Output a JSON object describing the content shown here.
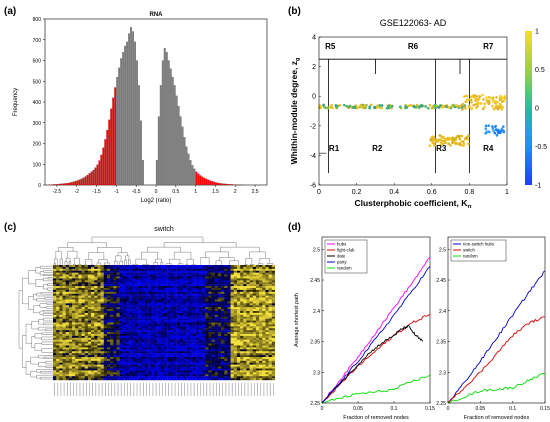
{
  "panels": {
    "a": {
      "letter": "(a)"
    },
    "b": {
      "letter": "(b)"
    },
    "c": {
      "letter": "(c)"
    },
    "d": {
      "letter": "(d)"
    }
  },
  "chart_data": [
    {
      "id": "a",
      "type": "bar",
      "title": "RNA",
      "xlabel": "Log2 (ratio)",
      "ylabel": "Frequency",
      "xlim": [
        -2.8,
        2.8
      ],
      "ylim": [
        0,
        800
      ],
      "xticks": [
        "-2.5",
        "-2",
        "-1.5",
        "-1",
        "-0.5",
        "0",
        "0.5",
        "1",
        "1.5",
        "2",
        "2.5"
      ],
      "xtick_values": [
        -2.5,
        -2,
        -1.5,
        -1,
        -0.5,
        0,
        0.5,
        1,
        1.5,
        2,
        2.5
      ],
      "yticks": [
        0,
        100,
        200,
        300,
        400,
        500,
        600,
        700,
        800
      ],
      "bin_width": 0.05,
      "bin_start": -2.7,
      "values": [
        2,
        2,
        3,
        3,
        4,
        5,
        6,
        7,
        8,
        9,
        11,
        13,
        16,
        19,
        22,
        26,
        30,
        35,
        41,
        48,
        56,
        64,
        72,
        84,
        98,
        118,
        145,
        180,
        220,
        265,
        315,
        368,
        420,
        470,
        520,
        565,
        610,
        640,
        670,
        690,
        730,
        760,
        740,
        690,
        600,
        480,
        310,
        120,
        0,
        0,
        0,
        0,
        0,
        0,
        120,
        330,
        480,
        600,
        660,
        640,
        600,
        560,
        520,
        480,
        430,
        380,
        330,
        280,
        230,
        185,
        150,
        120,
        95,
        78,
        64,
        54,
        46,
        40,
        34,
        29,
        25,
        21,
        18,
        15,
        12,
        10,
        8,
        7,
        6,
        5,
        4,
        3,
        3,
        2,
        2,
        1,
        1,
        1,
        0,
        0,
        0,
        0,
        0,
        0,
        0,
        0,
        0,
        0
      ],
      "highlight_color": "#ff0000",
      "bar_color": "#808080",
      "highlight_ranges": [
        [
          -2.7,
          -1.0
        ],
        [
          1.0,
          2.7
        ]
      ]
    },
    {
      "id": "b",
      "type": "scatter",
      "title": "GSE122063- AD",
      "xlabel": "Clusterphobic coefficient, K",
      "xlabel_sub": "π",
      "ylabel": "Whithin-module degree, z",
      "ylabel_sub": "g",
      "xlim": [
        0,
        1
      ],
      "ylim": [
        -6,
        4
      ],
      "xticks": [
        "0",
        "0.2",
        "0.4",
        "0.6",
        "0.8",
        "1"
      ],
      "xtick_values": [
        0,
        0.2,
        0.4,
        0.6,
        0.8,
        1
      ],
      "yticks": [
        "-6",
        "-4",
        "-2",
        "0",
        "2",
        "4"
      ],
      "ytick_values": [
        -6,
        -4,
        -2,
        0,
        2,
        4
      ],
      "region_labels": [
        {
          "text": "R5",
          "x": 0.06,
          "y": 3.2
        },
        {
          "text": "R6",
          "x": 0.5,
          "y": 3.2
        },
        {
          "text": "R7",
          "x": 0.9,
          "y": 3.2
        },
        {
          "text": "R1",
          "x": 0.08,
          "y": -3.7
        },
        {
          "text": "R2",
          "x": 0.31,
          "y": -3.7
        },
        {
          "text": "R3",
          "x": 0.65,
          "y": -3.7
        },
        {
          "text": "R4",
          "x": 0.9,
          "y": -3.7
        }
      ],
      "region_arrow_label": "R1",
      "hline": 2.5,
      "vlines_upper": [
        0.3,
        0.75
      ],
      "vlines_lower": [
        0.05,
        0.62,
        0.8
      ],
      "colorbar": {
        "min": -1,
        "max": 1,
        "ticks": [
          "-1",
          "-0.5",
          "0",
          "0.5",
          "1"
        ],
        "tick_values": [
          -1,
          -0.5,
          0,
          0.5,
          1
        ]
      },
      "clusters": [
        {
          "x_range": [
            0.0,
            0.78
          ],
          "y_center": -0.7,
          "y_spread": 0.12,
          "count": 160,
          "colors": [
            "#f0c020",
            "#e8b820",
            "#28a0a0",
            "#40b070",
            "#90c040"
          ]
        },
        {
          "x_range": [
            0.76,
            0.99
          ],
          "y_center": -0.4,
          "y_spread": 0.5,
          "count": 90,
          "colors": [
            "#f0c020",
            "#e0b030",
            "#f5d020"
          ]
        },
        {
          "x_range": [
            0.59,
            0.8
          ],
          "y_center": -3.0,
          "y_spread": 0.35,
          "count": 70,
          "colors": [
            "#f0c020",
            "#e8b820",
            "#d0b020"
          ]
        },
        {
          "x_range": [
            0.88,
            0.99
          ],
          "y_center": -2.3,
          "y_spread": 0.35,
          "count": 30,
          "colors": [
            "#1e78ff",
            "#2090f0",
            "#3aa0ff"
          ]
        }
      ]
    },
    {
      "id": "c",
      "type": "heatmap",
      "title": "switch",
      "rows": 60,
      "cols": 70,
      "colors": {
        "low": "#0000c8",
        "mid": "#000000",
        "high": "#f0e060"
      }
    },
    {
      "id": "d1",
      "type": "line",
      "ylabel": "Average shortest path",
      "xlabel": "Fraction of removed nodes",
      "xlim": [
        0,
        0.15
      ],
      "ylim": [
        2.25,
        2.52
      ],
      "xticks": [
        "0",
        "0.05",
        "0.1",
        "0.15"
      ],
      "xtick_values": [
        0,
        0.05,
        0.1,
        0.15
      ],
      "yticks": [
        "2.25",
        "2.3",
        "2.35",
        "2.4",
        "2.45",
        "2.5"
      ],
      "ytick_values": [
        2.25,
        2.3,
        2.35,
        2.4,
        2.45,
        2.5
      ],
      "legend_position": "top-left",
      "series": [
        {
          "name": "hubs",
          "color": "#ff00ff",
          "x": [
            0,
            0.025,
            0.05,
            0.075,
            0.1,
            0.125,
            0.15
          ],
          "y": [
            2.25,
            2.287,
            2.325,
            2.365,
            2.405,
            2.445,
            2.487
          ]
        },
        {
          "name": "fight-club",
          "color": "#e00000",
          "x": [
            0,
            0.025,
            0.05,
            0.075,
            0.1,
            0.125,
            0.15
          ],
          "y": [
            2.25,
            2.28,
            2.31,
            2.335,
            2.36,
            2.38,
            2.395
          ]
        },
        {
          "name": "date",
          "color": "#000000",
          "x": [
            0,
            0.02,
            0.04,
            0.06,
            0.08,
            0.1,
            0.11,
            0.12,
            0.13,
            0.14
          ],
          "y": [
            2.25,
            2.276,
            2.3,
            2.325,
            2.345,
            2.36,
            2.37,
            2.375,
            2.36,
            2.35
          ]
        },
        {
          "name": "party",
          "color": "#0000cc",
          "x": [
            0,
            0.025,
            0.05,
            0.075,
            0.1,
            0.125,
            0.15
          ],
          "y": [
            2.25,
            2.283,
            2.318,
            2.355,
            2.393,
            2.432,
            2.472
          ]
        },
        {
          "name": "random",
          "color": "#00e000",
          "x": [
            0,
            0.025,
            0.05,
            0.075,
            0.1,
            0.125,
            0.15
          ],
          "y": [
            2.25,
            2.258,
            2.265,
            2.268,
            2.272,
            2.285,
            2.295
          ]
        }
      ]
    },
    {
      "id": "d2",
      "type": "line",
      "xlabel": "Fraction of removed nodes",
      "xlim": [
        0,
        0.15
      ],
      "ylim": [
        2.25,
        2.52
      ],
      "xticks": [
        "0",
        "0.05",
        "0.1",
        "0.15"
      ],
      "xtick_values": [
        0,
        0.05,
        0.1,
        0.15
      ],
      "yticks": [
        "2.25",
        "2.3",
        "2.35",
        "2.4",
        "2.45",
        "2.5"
      ],
      "ytick_values": [
        2.25,
        2.3,
        2.35,
        2.4,
        2.45,
        2.5
      ],
      "legend_position": "top-left",
      "series": [
        {
          "name": "non-switch hubs",
          "color": "#0000cc",
          "x": [
            0,
            0.025,
            0.05,
            0.075,
            0.1,
            0.125,
            0.15
          ],
          "y": [
            2.25,
            2.283,
            2.318,
            2.355,
            2.393,
            2.43,
            2.465
          ]
        },
        {
          "name": "switch",
          "color": "#e00000",
          "x": [
            0,
            0.025,
            0.05,
            0.075,
            0.1,
            0.125,
            0.15
          ],
          "y": [
            2.25,
            2.275,
            2.3,
            2.33,
            2.36,
            2.38,
            2.39
          ]
        },
        {
          "name": "random",
          "color": "#00e000",
          "x": [
            0,
            0.025,
            0.05,
            0.075,
            0.1,
            0.125,
            0.15
          ],
          "y": [
            2.25,
            2.26,
            2.27,
            2.272,
            2.275,
            2.287,
            2.298
          ]
        }
      ]
    }
  ]
}
